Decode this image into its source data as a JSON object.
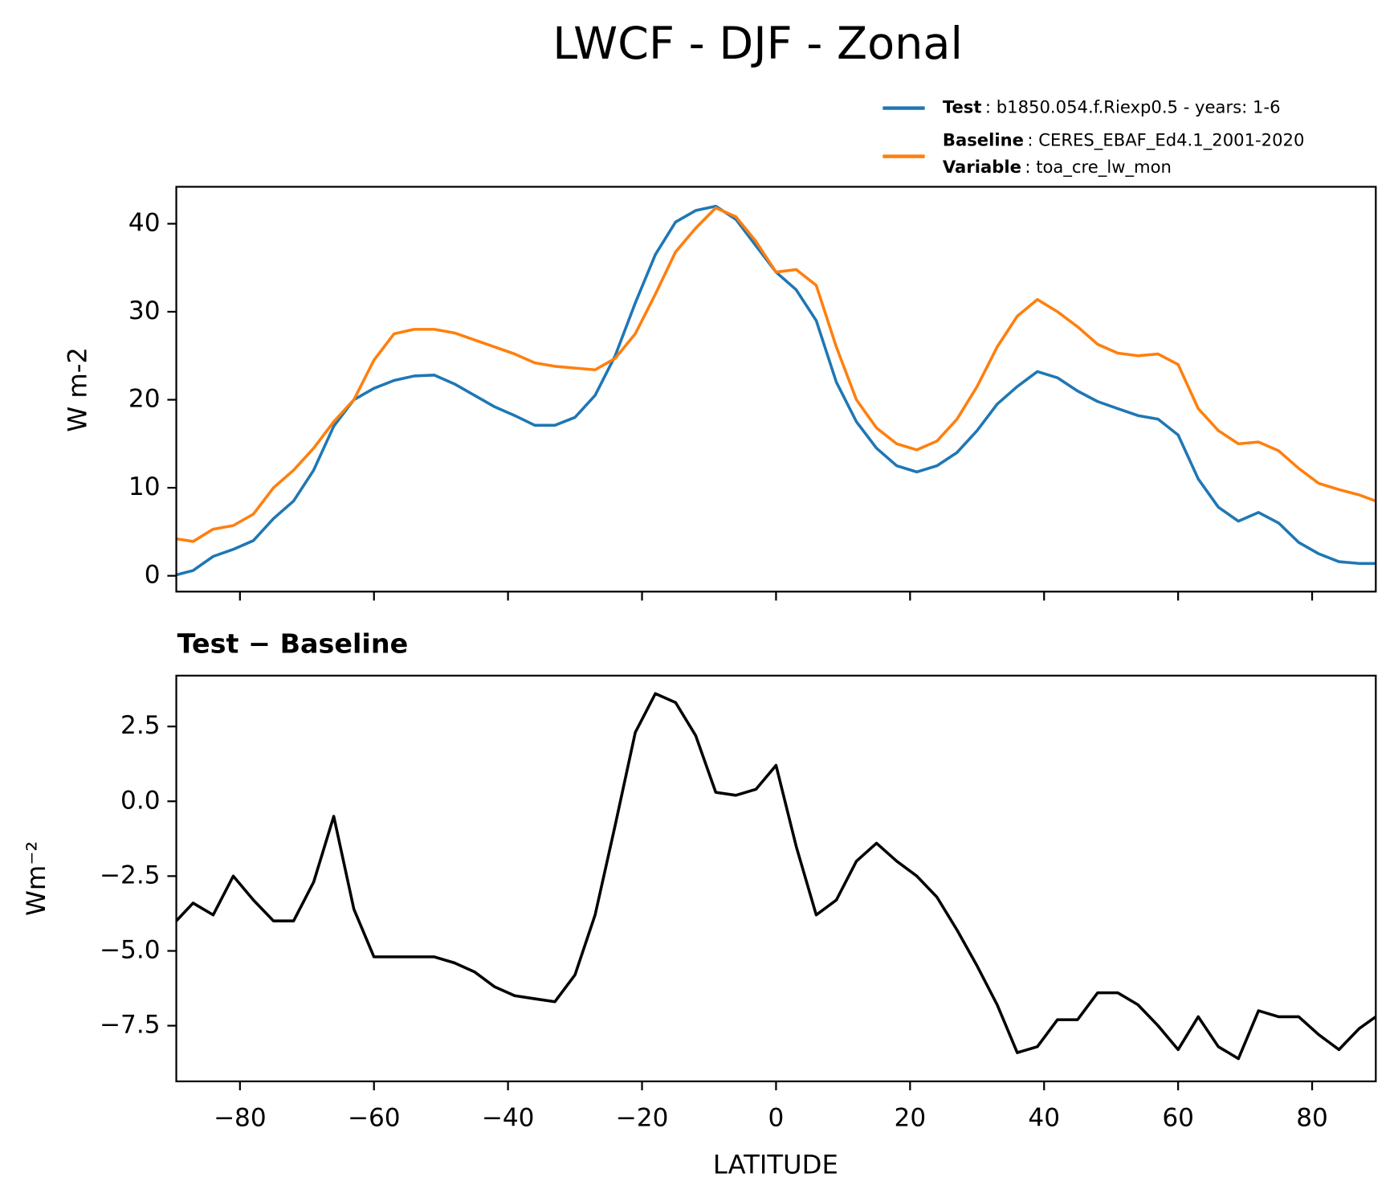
{
  "chart_data": [
    {
      "type": "line",
      "title": "LWCF - DJF - Zonal",
      "ylabel": "W m-2",
      "x": [
        -89.5,
        -87,
        -84,
        -81,
        -78,
        -75,
        -72,
        -69,
        -66,
        -63,
        -60,
        -57,
        -54,
        -51,
        -48,
        -45,
        -42,
        -39,
        -36,
        -33,
        -30,
        -27,
        -24,
        -21,
        -18,
        -15,
        -12,
        -9,
        -6,
        -3,
        0,
        3,
        6,
        9,
        12,
        15,
        18,
        21,
        24,
        27,
        30,
        33,
        36,
        39,
        42,
        45,
        48,
        51,
        54,
        57,
        60,
        63,
        66,
        69,
        72,
        75,
        78,
        81,
        84,
        87,
        89.5
      ],
      "series": [
        {
          "name": "Test",
          "detail": ": b1850.054.f.Riexp0.5 - years: 1-6",
          "color": "#1f77b4",
          "values": [
            0.1,
            0.6,
            2.2,
            3.0,
            4.0,
            6.5,
            8.5,
            12,
            17,
            20,
            21.3,
            22.2,
            22.7,
            22.8,
            21.8,
            20.5,
            19.2,
            18.2,
            17.1,
            17.1,
            18,
            20.5,
            25,
            31,
            36.5,
            40.2,
            41.5,
            42,
            40.5,
            37.5,
            34.5,
            32.5,
            29,
            22,
            17.5,
            14.5,
            12.5,
            11.8,
            12.5,
            14,
            16.5,
            19.5,
            21.5,
            23.2,
            22.5,
            21,
            19.8,
            19,
            18.2,
            17.8,
            16,
            11,
            7.8,
            6.2,
            7.2,
            6,
            3.8,
            2.5,
            1.6,
            1.4,
            1.4
          ]
        },
        {
          "name": "Baseline",
          "detail": ": CERES_EBAF_Ed4.1_2001-2020",
          "color": "#ff7f0e",
          "values": [
            4.2,
            3.9,
            5.3,
            5.7,
            7,
            10,
            12,
            14.5,
            17.5,
            20,
            24.5,
            27.5,
            28,
            28,
            27.6,
            26.8,
            26,
            25.2,
            24.2,
            23.8,
            23.6,
            23.4,
            24.7,
            27.5,
            32,
            36.8,
            39.5,
            41.8,
            40.8,
            38,
            34.5,
            34.8,
            33,
            26,
            20,
            16.8,
            15,
            14.3,
            15.3,
            17.8,
            21.5,
            26,
            29.5,
            31.4,
            30,
            28.3,
            26.3,
            25.3,
            25,
            25.2,
            24,
            19,
            16.5,
            15,
            15.2,
            14.2,
            12.2,
            10.5,
            9.8,
            9.2,
            8.5
          ]
        }
      ],
      "legend_variable_name": "Variable",
      "legend_variable": ": toa_cre_lw_mon",
      "xlim": [
        -89.5,
        89.5
      ],
      "xticks": [
        -80,
        -60,
        -40,
        -20,
        0,
        20,
        40,
        60,
        80
      ],
      "ylim": [
        -1.8,
        44.2
      ],
      "yticks": [
        0,
        10,
        20,
        30,
        40
      ]
    },
    {
      "type": "line",
      "title": "Test − Baseline",
      "ylabel": "Wm⁻²",
      "xlabel": "LATITUDE",
      "x": [
        -89.5,
        -87,
        -84,
        -81,
        -78,
        -75,
        -72,
        -69,
        -66,
        -63,
        -60,
        -57,
        -54,
        -51,
        -48,
        -45,
        -42,
        -39,
        -36,
        -33,
        -30,
        -27,
        -24,
        -21,
        -18,
        -15,
        -12,
        -9,
        -6,
        -3,
        0,
        3,
        6,
        9,
        12,
        15,
        18,
        21,
        24,
        27,
        30,
        33,
        36,
        39,
        42,
        45,
        48,
        51,
        54,
        57,
        60,
        63,
        66,
        69,
        72,
        75,
        78,
        81,
        84,
        87,
        89.5
      ],
      "series": [
        {
          "color": "#000000",
          "values": [
            -4,
            -3.4,
            -3.8,
            -2.5,
            -3.3,
            -4,
            -4,
            -2.7,
            -0.5,
            -3.6,
            -5.2,
            -5.2,
            -5.2,
            -5.2,
            -5.4,
            -5.7,
            -6.2,
            -6.5,
            -6.6,
            -6.7,
            -5.8,
            -3.8,
            -0.8,
            2.3,
            3.6,
            3.3,
            2.2,
            0.3,
            0.2,
            0.4,
            1.2,
            -1.5,
            -3.8,
            -3.3,
            -2.0,
            -1.4,
            -2.0,
            -2.5,
            -3.2,
            -4.3,
            -5.5,
            -6.8,
            -8.4,
            -8.2,
            -7.3,
            -7.3,
            -6.4,
            -6.4,
            -6.8,
            -7.5,
            -8.3,
            -7.2,
            -8.2,
            -8.6,
            -7.0,
            -7.2,
            -7.2,
            -7.8,
            -8.3,
            -7.6,
            -7.2
          ]
        }
      ],
      "xlim": [
        -89.5,
        89.5
      ],
      "xticks": [
        {
          "value": -80,
          "label": "−80"
        },
        {
          "value": -60,
          "label": "−60"
        },
        {
          "value": -40,
          "label": "−40"
        },
        {
          "value": -20,
          "label": "−20"
        },
        0,
        20,
        40,
        60,
        80
      ],
      "ylim": [
        -9.36,
        4.2
      ],
      "yticks": [
        2.5,
        {
          "value": 0,
          "label": "0.0"
        },
        {
          "value": -2.5,
          "label": "−2.5"
        },
        {
          "value": -5,
          "label": "−5.0"
        },
        {
          "value": -7.5,
          "label": "−7.5"
        }
      ]
    }
  ]
}
